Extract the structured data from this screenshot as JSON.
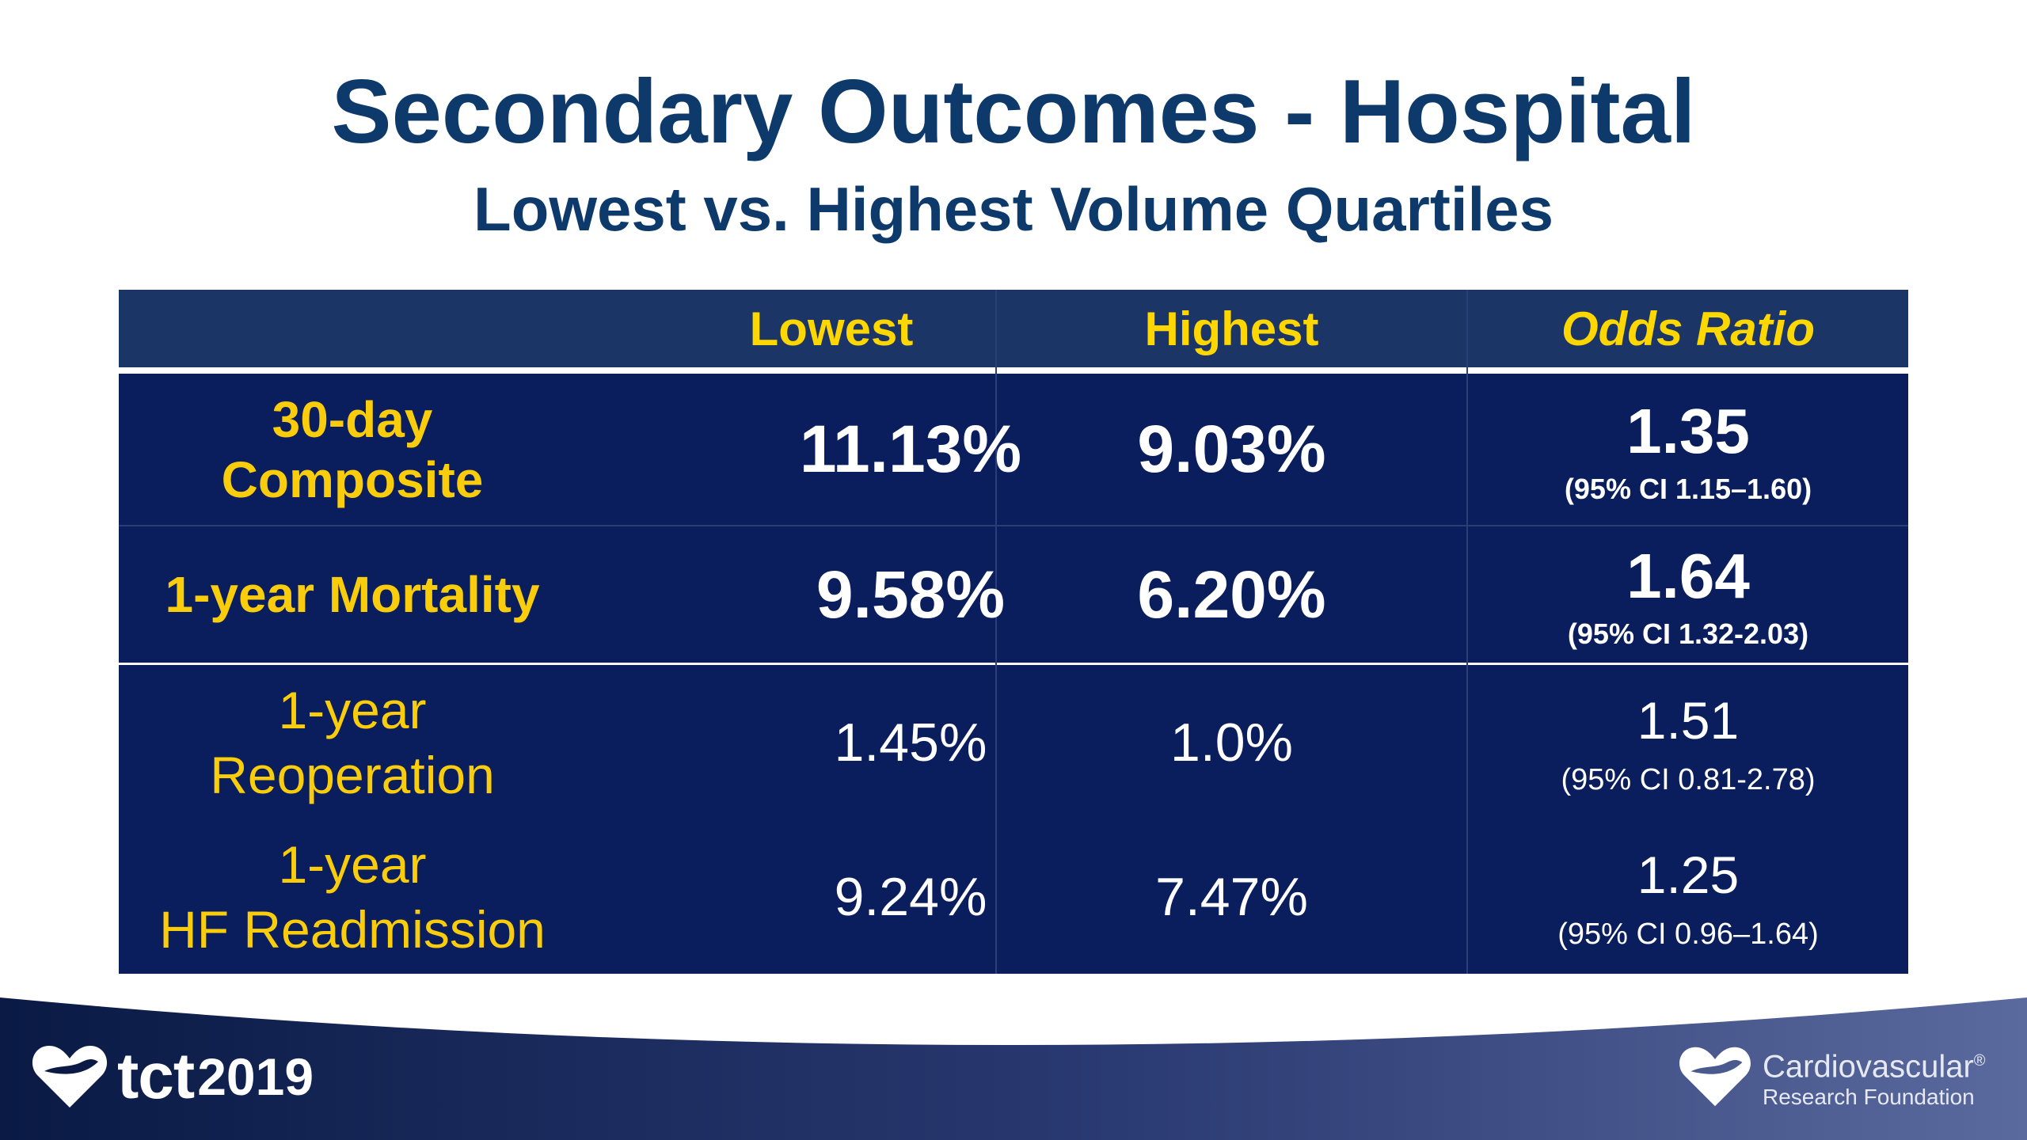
{
  "title": "Secondary Outcomes - Hospital",
  "subtitle": "Lowest vs. Highest Volume Quartiles",
  "table": {
    "headers": [
      "",
      "Lowest",
      "Highest",
      "Odds Ratio"
    ],
    "rows": [
      {
        "outcome_line1": "30-day",
        "outcome_line2": "Composite",
        "lowest": "11.13%",
        "highest": "9.03%",
        "odds_ratio": "1.35",
        "ci": "(95% CI 1.15–1.60)"
      },
      {
        "outcome_line1": "1-year Mortality",
        "outcome_line2": "",
        "lowest": "9.58%",
        "highest": "6.20%",
        "odds_ratio": "1.64",
        "ci": "(95% CI 1.32-2.03)"
      },
      {
        "outcome_line1": "1-year",
        "outcome_line2": "Reoperation",
        "lowest": "1.45%",
        "highest": "1.0%",
        "odds_ratio": "1.51",
        "ci": "(95% CI 0.81-2.78)"
      },
      {
        "outcome_line1": "1-year",
        "outcome_line2": "HF Readmission",
        "lowest": "9.24%",
        "highest": "7.47%",
        "odds_ratio": "1.25",
        "ci": "(95% CI 0.96–1.64)"
      }
    ]
  },
  "footer": {
    "left_logo": {
      "text": "tct",
      "year": "2019",
      "icon": "heart-logo-icon"
    },
    "right_logo": {
      "name": "Cardiovascular",
      "registered": "®",
      "sub": "Research Foundation",
      "icon": "heart-logo-icon"
    }
  },
  "colors": {
    "title": "#0d3a6b",
    "table_bg": "#0a1d5c",
    "header_bg": "#1c3567",
    "label_yellow": "#ffd700",
    "footer_dark": "#0b1f4f"
  }
}
